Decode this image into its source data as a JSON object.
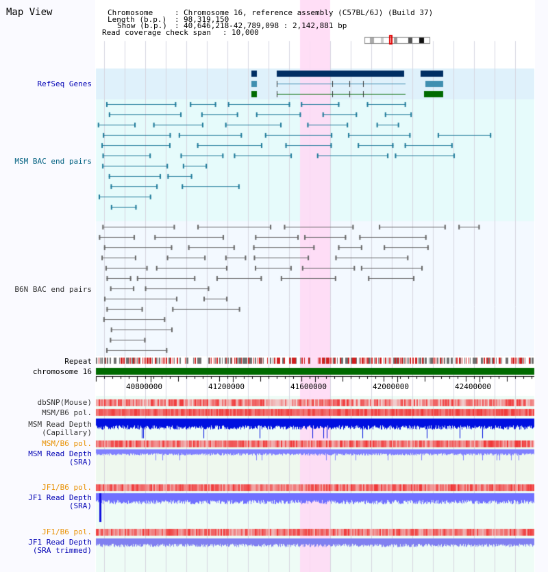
{
  "title": "Map View",
  "header": {
    "chromosome_label": "Chromosome",
    "chromosome_value": "Chromosome 16, reference assembly (C57BL/6J) (Build 37)",
    "length_label": "Length (b.p.)",
    "length_value": "98,319,150",
    "show_label": "Show (b.p.)",
    "show_value": "40,646,218-42,789,098 : 2,142,881 bp",
    "coverage_label": "Read coverage check span",
    "coverage_value": "10,000"
  },
  "tracks": {
    "refseq": "RefSeq Genes",
    "msm_bac": "MSM BAC end pairs",
    "b6n_bac": "B6N BAC end pairs",
    "repeat": "Repeat",
    "chromosome": "chromosome 16",
    "dbsnp": "dbSNP(Mouse)",
    "msm_b6_pol": "MSM/B6 pol.",
    "msm_read_cap_1": "MSM Read Depth",
    "msm_read_cap_2": "(Capillary)",
    "msm_b6_pol2": "MSM/B6 pol.",
    "msm_read_sra_1": "MSM Read Depth",
    "msm_read_sra_2": "(SRA)",
    "jf1_b6_pol": "JF1/B6 pol.",
    "jf1_read_sra_1": "JF1 Read Depth",
    "jf1_read_sra_2": "(SRA)",
    "jf1_b6_pol2": "JF1/B6 pol.",
    "jf1_read_trim_1": "JF1 Read Depth",
    "jf1_read_trim_2": "(SRA trimmed)"
  },
  "ruler_ticks": [
    "40800000",
    "41200000",
    "41600000",
    "42000000",
    "42400000"
  ],
  "colors": {
    "gene_navy": "#002e63",
    "gene_teal": "#3f8fb0",
    "gene_green": "#006a00",
    "highlight": "#ffd8f4",
    "chromosome_bar": "#006a00",
    "read_depth": "#0000e0"
  }
}
